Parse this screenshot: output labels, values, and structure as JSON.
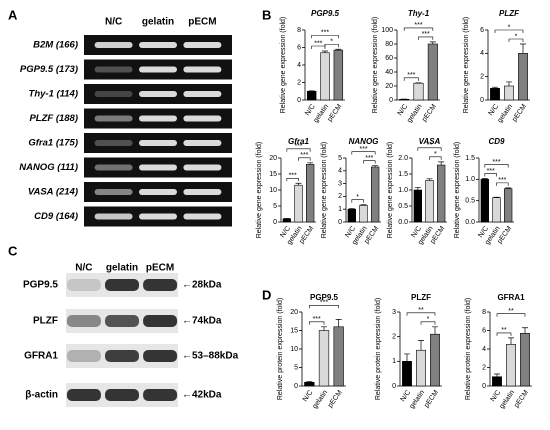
{
  "panel_a": {
    "letter": "A",
    "columns": [
      "N/C",
      "gelatin",
      "pECM"
    ],
    "rows": [
      "B2M (166)",
      "PGP9.5 (173)",
      "Thy-1 (114)",
      "PLZF (188)",
      "Gfra1 (175)",
      "NANOG (111)",
      "VASA (214)",
      "CD9 (164)"
    ]
  },
  "panel_b": {
    "letter": "B"
  },
  "panel_c": {
    "letter": "C",
    "columns": [
      "N/C",
      "gelatin",
      "pECM"
    ],
    "rows": [
      {
        "label": "PGP9.5",
        "size": "←28kDa"
      },
      {
        "label": "PLZF",
        "size": "←74kDa"
      },
      {
        "label": "GFRA1",
        "size": "←53–88kDa"
      },
      {
        "label": "β-actin",
        "size": "←42kDa"
      }
    ]
  },
  "panel_d": {
    "letter": "D"
  },
  "chart_data": [
    {
      "type": "bar",
      "title": "PGP9.5",
      "ylabel": "Relative gene expression (fold)",
      "categories": [
        "N/C",
        "gelatin",
        "pECM"
      ],
      "values": [
        1,
        5.4,
        5.7
      ],
      "errors": [
        0.05,
        0.2,
        0.1
      ],
      "colors": [
        "#000000",
        "#d9d9d9",
        "#808080"
      ],
      "ylim": [
        0,
        8
      ],
      "yticks": [
        0,
        2,
        4,
        6,
        8
      ],
      "brackets": [
        {
          "from": "N/C",
          "to": "gelatin",
          "label": "***"
        },
        {
          "from": "gelatin",
          "to": "pECM",
          "label": "*"
        },
        {
          "from": "N/C",
          "to": "pECM",
          "label": "***"
        }
      ]
    },
    {
      "type": "bar",
      "title": "Thy-1",
      "ylabel": "Relative gene expression (fold)",
      "categories": [
        "N/C",
        "gelatin",
        "pECM"
      ],
      "values": [
        1,
        24,
        80
      ],
      "errors": [
        0.3,
        0.5,
        3
      ],
      "colors": [
        "#000000",
        "#d9d9d9",
        "#808080"
      ],
      "ylim": [
        0,
        100
      ],
      "yticks": [
        0,
        20,
        40,
        60,
        80,
        100
      ],
      "brackets": [
        {
          "from": "N/C",
          "to": "gelatin",
          "label": "***"
        },
        {
          "from": "gelatin",
          "to": "pECM",
          "label": "***"
        },
        {
          "from": "N/C",
          "to": "pECM",
          "label": "***"
        }
      ]
    },
    {
      "type": "bar",
      "title": "PLZF",
      "ylabel": "Relative gene expression (fold)",
      "categories": [
        "N/C",
        "gelatin",
        "pECM"
      ],
      "values": [
        1,
        1.2,
        4.0
      ],
      "errors": [
        0.1,
        0.35,
        0.8
      ],
      "colors": [
        "#000000",
        "#d9d9d9",
        "#808080"
      ],
      "ylim": [
        0,
        6
      ],
      "yticks": [
        0,
        2,
        4,
        6
      ],
      "brackets": [
        {
          "from": "gelatin",
          "to": "pECM",
          "label": "*"
        },
        {
          "from": "N/C",
          "to": "pECM",
          "label": "*"
        }
      ]
    },
    {
      "type": "bar",
      "title": "Gfra1",
      "ylabel": "Relative gene expression (fold)",
      "categories": [
        "N/C",
        "gelatin",
        "pECM"
      ],
      "values": [
        1,
        11.5,
        18
      ],
      "errors": [
        0.1,
        0.6,
        0.5
      ],
      "colors": [
        "#000000",
        "#d9d9d9",
        "#808080"
      ],
      "ylim": [
        0,
        20
      ],
      "yticks": [
        0,
        5,
        10,
        15,
        20
      ],
      "brackets": [
        {
          "from": "N/C",
          "to": "gelatin",
          "label": "***"
        },
        {
          "from": "gelatin",
          "to": "pECM",
          "label": "***"
        },
        {
          "from": "N/C",
          "to": "pECM",
          "label": "***"
        }
      ]
    },
    {
      "type": "bar",
      "title": "NANOG",
      "ylabel": "Relative gene expression (fold)",
      "categories": [
        "N/C",
        "gelatin",
        "pECM"
      ],
      "values": [
        1,
        1.3,
        4.3
      ],
      "errors": [
        0.05,
        0.05,
        0.1
      ],
      "colors": [
        "#000000",
        "#d9d9d9",
        "#808080"
      ],
      "ylim": [
        0,
        5
      ],
      "yticks": [
        0,
        1,
        2,
        3,
        4,
        5
      ],
      "brackets": [
        {
          "from": "N/C",
          "to": "gelatin",
          "label": "*"
        },
        {
          "from": "gelatin",
          "to": "pECM",
          "label": "***"
        },
        {
          "from": "N/C",
          "to": "pECM",
          "label": "***"
        }
      ]
    },
    {
      "type": "bar",
      "title": "VASA",
      "ylabel": "Relative gene expression (fold)",
      "categories": [
        "N/C",
        "gelatin",
        "pECM"
      ],
      "values": [
        1.0,
        1.3,
        1.78
      ],
      "errors": [
        0.08,
        0.05,
        0.1
      ],
      "colors": [
        "#000000",
        "#d9d9d9",
        "#808080"
      ],
      "ylim": [
        0,
        2
      ],
      "yticks": [
        {
          "value": 0,
          "label": "0.0"
        },
        {
          "value": 0.5,
          "label": "0.5"
        },
        {
          "value": 1,
          "label": "1.0"
        },
        {
          "value": 1.5,
          "label": "1.5"
        },
        {
          "value": 2,
          "label": "2.0"
        }
      ],
      "brackets": [
        {
          "from": "gelatin",
          "to": "pECM",
          "label": "*"
        },
        {
          "from": "N/C",
          "to": "pECM",
          "label": "**"
        }
      ]
    },
    {
      "type": "bar",
      "title": "CD9",
      "ylabel": "Relative gene expression (fold)",
      "categories": [
        "N/C",
        "gelatin",
        "pECM"
      ],
      "values": [
        1.0,
        0.57,
        0.78
      ],
      "errors": [
        0.02,
        0.01,
        0.02
      ],
      "colors": [
        "#000000",
        "#d9d9d9",
        "#808080"
      ],
      "ylim": [
        0,
        1.5
      ],
      "yticks": [
        {
          "value": 0,
          "label": "0.0"
        },
        {
          "value": 0.5,
          "label": "0.5"
        },
        {
          "value": 1,
          "label": "1.0"
        },
        {
          "value": 1.5,
          "label": "1.5"
        }
      ],
      "brackets": [
        {
          "from": "N/C",
          "to": "gelatin",
          "label": "***"
        },
        {
          "from": "gelatin",
          "to": "pECM",
          "label": "***"
        },
        {
          "from": "N/C",
          "to": "pECM",
          "label": "***"
        }
      ]
    },
    {
      "type": "bar",
      "title": "PGP9.5",
      "ylabel": "Relative protein expression (fold)",
      "categories": [
        "N/C",
        "gelatin",
        "pECM"
      ],
      "values": [
        1,
        15,
        16
      ],
      "errors": [
        0.2,
        1,
        2
      ],
      "colors": [
        "#000000",
        "#d9d9d9",
        "#808080"
      ],
      "ylim": [
        0,
        20
      ],
      "yticks": [
        0,
        5,
        10,
        15,
        20
      ],
      "brackets": [
        {
          "from": "N/C",
          "to": "gelatin",
          "label": "***"
        },
        {
          "from": "N/C",
          "to": "pECM",
          "label": "***"
        }
      ]
    },
    {
      "type": "bar",
      "title": "PLZF",
      "ylabel": "Relative protein expression (fold)",
      "categories": [
        "N/C",
        "gelatin",
        "pECM"
      ],
      "values": [
        1,
        1.45,
        2.1
      ],
      "errors": [
        0.3,
        0.4,
        0.3
      ],
      "colors": [
        "#000000",
        "#d9d9d9",
        "#808080"
      ],
      "ylim": [
        0,
        3
      ],
      "yticks": [
        0,
        1,
        2,
        3
      ],
      "brackets": [
        {
          "from": "gelatin",
          "to": "pECM",
          "label": "*"
        },
        {
          "from": "N/C",
          "to": "pECM",
          "label": "**"
        }
      ]
    },
    {
      "type": "bar",
      "title": "GFRA1",
      "ylabel": "Relative protein expression (fold)",
      "categories": [
        "N/C",
        "gelatin",
        "pECM"
      ],
      "values": [
        1,
        4.5,
        5.7
      ],
      "errors": [
        0.3,
        0.7,
        0.6
      ],
      "colors": [
        "#000000",
        "#d9d9d9",
        "#808080"
      ],
      "ylim": [
        0,
        8
      ],
      "yticks": [
        0,
        2,
        4,
        6,
        8
      ],
      "brackets": [
        {
          "from": "N/C",
          "to": "gelatin",
          "label": "**"
        },
        {
          "from": "N/C",
          "to": "pECM",
          "label": "**"
        }
      ]
    }
  ]
}
